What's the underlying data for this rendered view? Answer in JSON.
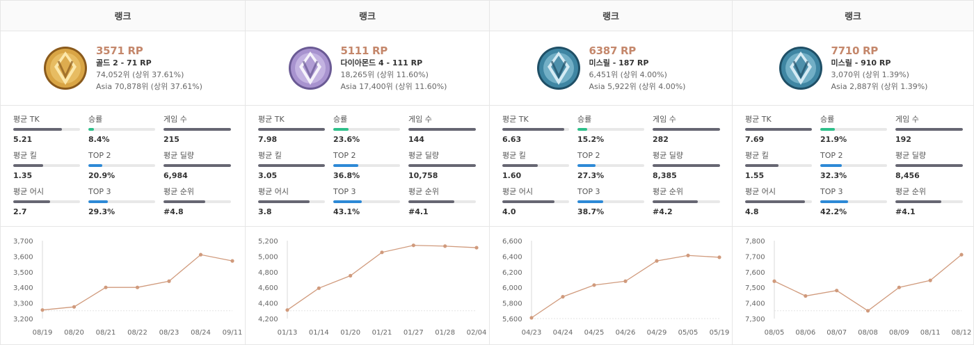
{
  "colors": {
    "accent_rp": "#c4876b",
    "bar_dark": "#666672",
    "bar_green": "#2ebf8a",
    "bar_blue": "#2d89d6",
    "line": "#d09a7c"
  },
  "cards": [
    {
      "header": "랭크",
      "emblem": "gold-emblem-icon",
      "rp": "3571 RP",
      "tier": "골드 2 - 71 RP",
      "global_rank": "74,052위 (상위 37.61%)",
      "region_rank": "Asia 70,878위 (상위 37.61%)",
      "stats": [
        {
          "label": "평균 TK",
          "value": "5.21",
          "fill": 0.73,
          "color": "dark"
        },
        {
          "label": "승률",
          "value": "8.4%",
          "fill": 0.08,
          "color": "green"
        },
        {
          "label": "게임 수",
          "value": "215",
          "fill": 1.0,
          "color": "dark"
        },
        {
          "label": "평균 킬",
          "value": "1.35",
          "fill": 0.45,
          "color": "dark"
        },
        {
          "label": "TOP 2",
          "value": "20.9%",
          "fill": 0.21,
          "color": "blue"
        },
        {
          "label": "평균 딜량",
          "value": "6,984",
          "fill": 1.0,
          "color": "dark"
        },
        {
          "label": "평균 어시",
          "value": "2.7",
          "fill": 0.55,
          "color": "dark"
        },
        {
          "label": "TOP 3",
          "value": "29.3%",
          "fill": 0.29,
          "color": "blue"
        },
        {
          "label": "평균 순위",
          "value": "#4.8",
          "fill": 0.62,
          "color": "dark"
        }
      ],
      "chart_data": {
        "type": "line",
        "x": [
          "08/19",
          "08/20",
          "08/21",
          "08/22",
          "08/23",
          "08/24",
          "09/11"
        ],
        "values": [
          3255,
          3275,
          3400,
          3400,
          3440,
          3610,
          3570
        ],
        "yticks": [
          3200,
          3300,
          3400,
          3500,
          3600,
          3700
        ],
        "ylim": [
          3200,
          3700
        ],
        "reference": 3250
      }
    },
    {
      "header": "랭크",
      "emblem": "diamond-emblem-icon",
      "rp": "5111 RP",
      "tier": "다이아몬드 4 - 111 RP",
      "global_rank": "18,265위 (상위 11.60%)",
      "region_rank": "Asia 17,400위 (상위 11.60%)",
      "stats": [
        {
          "label": "평균 TK",
          "value": "7.98",
          "fill": 1.0,
          "color": "dark"
        },
        {
          "label": "승률",
          "value": "23.6%",
          "fill": 0.23,
          "color": "green"
        },
        {
          "label": "게임 수",
          "value": "144",
          "fill": 1.0,
          "color": "dark"
        },
        {
          "label": "평균 킬",
          "value": "3.05",
          "fill": 1.0,
          "color": "dark"
        },
        {
          "label": "TOP 2",
          "value": "36.8%",
          "fill": 0.37,
          "color": "blue"
        },
        {
          "label": "평균 딜량",
          "value": "10,758",
          "fill": 1.0,
          "color": "dark"
        },
        {
          "label": "평균 어시",
          "value": "3.8",
          "fill": 0.77,
          "color": "dark"
        },
        {
          "label": "TOP 3",
          "value": "43.1%",
          "fill": 0.43,
          "color": "blue"
        },
        {
          "label": "평균 순위",
          "value": "#4.1",
          "fill": 0.68,
          "color": "dark"
        }
      ],
      "chart_data": {
        "type": "line",
        "x": [
          "01/13",
          "01/14",
          "01/20",
          "01/21",
          "01/27",
          "01/28",
          "02/04"
        ],
        "values": [
          4310,
          4590,
          4750,
          5050,
          5140,
          5130,
          5110
        ],
        "yticks": [
          4200,
          4400,
          4600,
          4800,
          5000,
          5200
        ],
        "ylim": [
          4200,
          5200
        ],
        "reference": 4300
      }
    },
    {
      "header": "랭크",
      "emblem": "mithril-emblem-icon",
      "rp": "6387 RP",
      "tier": "미스릴 - 187 RP",
      "global_rank": "6,451위 (상위 4.00%)",
      "region_rank": "Asia 5,922위 (상위 4.00%)",
      "stats": [
        {
          "label": "평균 TK",
          "value": "6.63",
          "fill": 0.93,
          "color": "dark"
        },
        {
          "label": "승률",
          "value": "15.2%",
          "fill": 0.15,
          "color": "green"
        },
        {
          "label": "게임 수",
          "value": "282",
          "fill": 1.0,
          "color": "dark"
        },
        {
          "label": "평균 킬",
          "value": "1.60",
          "fill": 0.53,
          "color": "dark"
        },
        {
          "label": "TOP 2",
          "value": "27.3%",
          "fill": 0.27,
          "color": "blue"
        },
        {
          "label": "평균 딜량",
          "value": "8,385",
          "fill": 1.0,
          "color": "dark"
        },
        {
          "label": "평균 어시",
          "value": "4.0",
          "fill": 0.78,
          "color": "dark"
        },
        {
          "label": "TOP 3",
          "value": "38.7%",
          "fill": 0.39,
          "color": "blue"
        },
        {
          "label": "평균 순위",
          "value": "#4.2",
          "fill": 0.67,
          "color": "dark"
        }
      ],
      "chart_data": {
        "type": "line",
        "x": [
          "04/23",
          "04/24",
          "04/25",
          "04/26",
          "04/29",
          "05/05",
          "05/19"
        ],
        "values": [
          5610,
          5880,
          6030,
          6080,
          6340,
          6410,
          6387
        ],
        "yticks": [
          5600,
          5800,
          6000,
          6200,
          6400,
          6600
        ],
        "ylim": [
          5600,
          6600
        ],
        "reference": 5600
      }
    },
    {
      "header": "랭크",
      "emblem": "mithril-emblem-icon",
      "rp": "7710 RP",
      "tier": "미스릴 - 910 RP",
      "global_rank": "3,070위 (상위 1.39%)",
      "region_rank": "Asia 2,887위 (상위 1.39%)",
      "stats": [
        {
          "label": "평균 TK",
          "value": "7.69",
          "fill": 1.0,
          "color": "dark"
        },
        {
          "label": "승률",
          "value": "21.9%",
          "fill": 0.22,
          "color": "green"
        },
        {
          "label": "게임 수",
          "value": "192",
          "fill": 1.0,
          "color": "dark"
        },
        {
          "label": "평균 킬",
          "value": "1.55",
          "fill": 0.5,
          "color": "dark"
        },
        {
          "label": "TOP 2",
          "value": "32.3%",
          "fill": 0.32,
          "color": "blue"
        },
        {
          "label": "평균 딜량",
          "value": "8,456",
          "fill": 1.0,
          "color": "dark"
        },
        {
          "label": "평균 어시",
          "value": "4.8",
          "fill": 0.9,
          "color": "dark"
        },
        {
          "label": "TOP 3",
          "value": "42.2%",
          "fill": 0.42,
          "color": "blue"
        },
        {
          "label": "평균 순위",
          "value": "#4.1",
          "fill": 0.68,
          "color": "dark"
        }
      ],
      "chart_data": {
        "type": "line",
        "x": [
          "08/05",
          "08/06",
          "08/07",
          "08/08",
          "08/09",
          "08/11",
          "08/12"
        ],
        "values": [
          7540,
          7445,
          7480,
          7350,
          7500,
          7545,
          7710
        ],
        "yticks": [
          7300,
          7400,
          7500,
          7600,
          7700,
          7800
        ],
        "ylim": [
          7300,
          7800
        ],
        "reference": 7350
      }
    }
  ]
}
